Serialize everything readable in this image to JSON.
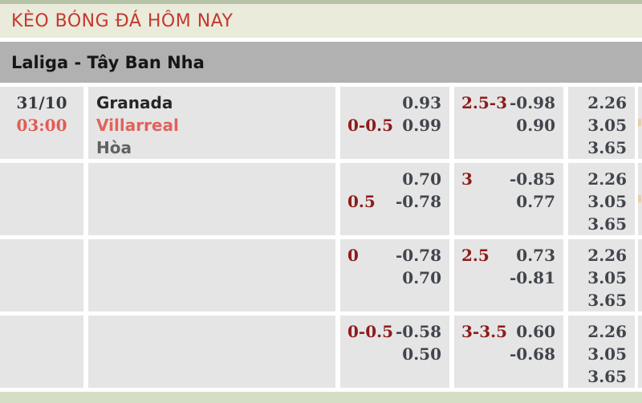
{
  "header": {
    "title": "KÈO BÓNG ĐÁ HÔM NAY"
  },
  "league": {
    "name": "Laliga - Tây Ban Nha"
  },
  "match": {
    "date": "31/10",
    "time": "03:00",
    "home_team": "Granada",
    "away_team": "Villarreal",
    "draw_label": "Hòa"
  },
  "rows": [
    {
      "handicap": {
        "l1_label": "",
        "l1_value": "0.93",
        "l2_label": "0-0.5",
        "l2_value": "0.99"
      },
      "over_under": {
        "l1_label": "2.5-3",
        "l1_value": "-0.98",
        "l2_label": "",
        "l2_value": "0.90"
      },
      "one_x_two": [
        "2.26",
        "3.05",
        "3.65"
      ]
    },
    {
      "handicap": {
        "l1_label": "",
        "l1_value": "0.70",
        "l2_label": "0.5",
        "l2_value": "-0.78"
      },
      "over_under": {
        "l1_label": "3",
        "l1_value": "-0.85",
        "l2_label": "",
        "l2_value": "0.77"
      },
      "one_x_two": [
        "2.26",
        "3.05",
        "3.65"
      ]
    },
    {
      "handicap": {
        "l1_label": "0",
        "l1_value": "-0.78",
        "l2_label": "",
        "l2_value": "0.70"
      },
      "over_under": {
        "l1_label": "2.5",
        "l1_value": "0.73",
        "l2_label": "",
        "l2_value": "-0.81"
      },
      "one_x_two": [
        "2.26",
        "3.05",
        "3.65"
      ]
    },
    {
      "handicap": {
        "l1_label": "0-0.5",
        "l1_value": "-0.58",
        "l2_label": "",
        "l2_value": "0.50"
      },
      "over_under": {
        "l1_label": "3-3.5",
        "l1_value": "0.60",
        "l2_label": "",
        "l2_value": "-0.68"
      },
      "one_x_two": [
        "2.26",
        "3.05",
        "3.65"
      ]
    }
  ],
  "colors": {
    "accent_red": "#c5382e",
    "label_maroon": "#8e1b1b",
    "value_slate": "#41454c",
    "away_team_red": "#e2625c",
    "row_bg": "#e5e5e5",
    "league_bar_bg": "#b1b1b1",
    "header_bg": "#eaebdb",
    "top_strip_green": "#b6c3a7",
    "bottom_strip_green": "#d3dec5"
  }
}
